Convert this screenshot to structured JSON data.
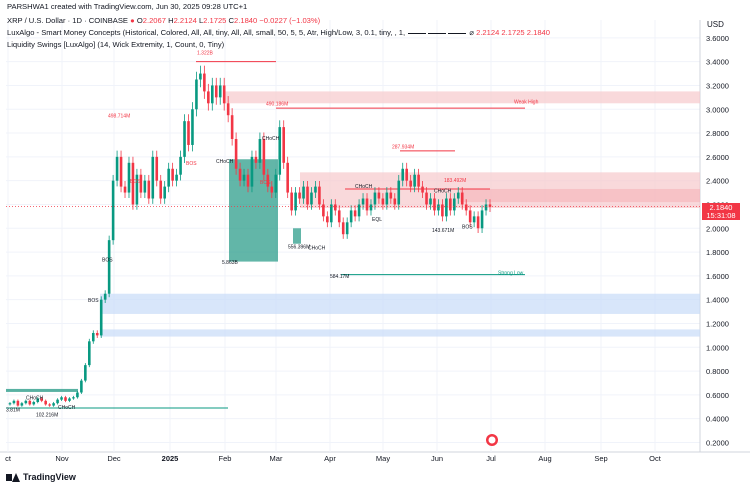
{
  "header": {
    "creator_line": "PARSHWA1 created with TradingView.com, Jun 30, 2025 09:28 UTC+1",
    "symbol": "XRP / U.S. Dollar · 1D · COINBASE",
    "o_label": "O",
    "o_value": "2.2067",
    "h_label": "H",
    "h_value": "2.2124",
    "l_label": "L",
    "l_value": "2.1725",
    "c_label": "C",
    "c_value": "2.1840",
    "change": "−0.0227 (−1.03%)",
    "indicator1": "LuxAlgo - Smart Money Concepts (Historical, Colored, All, All, tiny, All, All, small, 50, 5, 5, Atr, High/Low, 3, 0.1, tiny, , 1,",
    "indicator1_values": "2.2124  2.1725  2.1840",
    "indicator2": "Liquidity Swings [LuxAlgo] (14, Wick Extremity, 1, Count, 0, Tiny)"
  },
  "axis": {
    "currency": "USD",
    "current_price": "2.1840",
    "countdown": "15:31:08"
  },
  "footer": {
    "brand": "TradingView"
  },
  "colors": {
    "up": "#089981",
    "down": "#f23645",
    "zone_red": "#f7c9cc",
    "zone_blue": "#c8dcf8",
    "ob_green": "#2e9e8b",
    "grid": "#f0f3fa"
  },
  "chart_data": {
    "type": "candlestick",
    "ylim": [
      0.12,
      3.75
    ],
    "x_ticks": [
      "ct",
      "Nov",
      "Dec",
      "2025",
      "Feb",
      "Mar",
      "Apr",
      "May",
      "Jun",
      "Jul",
      "Aug",
      "Sep",
      "Oct"
    ],
    "y_ticks": [
      "3.6000",
      "3.4000",
      "3.2000",
      "3.0000",
      "2.8000",
      "2.6000",
      "2.4000",
      "2.2000",
      "2.0000",
      "1.8000",
      "1.6000",
      "1.4000",
      "1.2000",
      "1.0000",
      "0.8000",
      "0.6000",
      "0.4000",
      "0.2000"
    ],
    "y_tick_values": [
      3.6,
      3.4,
      3.2,
      3.0,
      2.8,
      2.6,
      2.4,
      2.2,
      2.0,
      1.8,
      1.6,
      1.4,
      1.2,
      1.0,
      0.8,
      0.6,
      0.4,
      0.2
    ],
    "price_path": [
      [
        0,
        0.52
      ],
      [
        4,
        0.53
      ],
      [
        8,
        0.55
      ],
      [
        12,
        0.51
      ],
      [
        16,
        0.53
      ],
      [
        20,
        0.55
      ],
      [
        24,
        0.52
      ],
      [
        28,
        0.54
      ],
      [
        32,
        0.57
      ],
      [
        36,
        0.55
      ],
      [
        40,
        0.52
      ],
      [
        44,
        0.51
      ],
      [
        48,
        0.53
      ],
      [
        52,
        0.56
      ],
      [
        56,
        0.58
      ],
      [
        60,
        0.55
      ],
      [
        64,
        0.57
      ],
      [
        68,
        0.58
      ],
      [
        72,
        0.62
      ],
      [
        76,
        0.72
      ],
      [
        80,
        0.85
      ],
      [
        84,
        1.05
      ],
      [
        88,
        1.12
      ],
      [
        92,
        1.1
      ],
      [
        96,
        1.4
      ],
      [
        100,
        1.45
      ],
      [
        104,
        1.9
      ],
      [
        108,
        2.4
      ],
      [
        112,
        2.6
      ],
      [
        116,
        2.35
      ],
      [
        120,
        2.3
      ],
      [
        124,
        2.55
      ],
      [
        128,
        2.2
      ],
      [
        132,
        2.45
      ],
      [
        136,
        2.3
      ],
      [
        140,
        2.4
      ],
      [
        144,
        2.25
      ],
      [
        148,
        2.6
      ],
      [
        152,
        2.4
      ],
      [
        156,
        2.25
      ],
      [
        160,
        2.35
      ],
      [
        164,
        2.5
      ],
      [
        168,
        2.4
      ],
      [
        172,
        2.45
      ],
      [
        176,
        2.6
      ],
      [
        180,
        2.9
      ],
      [
        184,
        2.7
      ],
      [
        188,
        3.0
      ],
      [
        192,
        3.25
      ],
      [
        196,
        3.3
      ],
      [
        200,
        3.15
      ],
      [
        204,
        3.05
      ],
      [
        208,
        3.2
      ],
      [
        212,
        3.1
      ],
      [
        216,
        3.2
      ],
      [
        220,
        3.05
      ],
      [
        224,
        2.95
      ],
      [
        228,
        2.75
      ],
      [
        232,
        2.5
      ],
      [
        236,
        2.4
      ],
      [
        240,
        2.45
      ],
      [
        244,
        2.35
      ],
      [
        248,
        2.6
      ],
      [
        252,
        2.55
      ],
      [
        256,
        2.75
      ],
      [
        260,
        2.45
      ],
      [
        264,
        2.35
      ],
      [
        268,
        2.3
      ],
      [
        272,
        2.45
      ],
      [
        276,
        2.85
      ],
      [
        280,
        2.55
      ],
      [
        284,
        2.3
      ],
      [
        288,
        2.15
      ],
      [
        292,
        2.3
      ],
      [
        296,
        2.25
      ],
      [
        300,
        2.35
      ],
      [
        304,
        2.2
      ],
      [
        308,
        2.3
      ],
      [
        312,
        2.35
      ],
      [
        316,
        2.2
      ],
      [
        320,
        2.1
      ],
      [
        324,
        2.05
      ],
      [
        328,
        2.2
      ],
      [
        332,
        2.15
      ],
      [
        336,
        2.05
      ],
      [
        340,
        1.95
      ],
      [
        344,
        2.05
      ],
      [
        348,
        2.15
      ],
      [
        352,
        2.1
      ],
      [
        356,
        2.2
      ],
      [
        360,
        2.25
      ],
      [
        364,
        2.15
      ],
      [
        368,
        2.2
      ],
      [
        372,
        2.3
      ],
      [
        376,
        2.25
      ],
      [
        380,
        2.2
      ],
      [
        384,
        2.3
      ],
      [
        388,
        2.25
      ],
      [
        392,
        2.2
      ],
      [
        396,
        2.4
      ],
      [
        400,
        2.5
      ],
      [
        404,
        2.4
      ],
      [
        408,
        2.35
      ],
      [
        412,
        2.45
      ],
      [
        416,
        2.35
      ],
      [
        420,
        2.3
      ],
      [
        424,
        2.2
      ],
      [
        428,
        2.25
      ],
      [
        432,
        2.15
      ],
      [
        436,
        2.2
      ],
      [
        440,
        2.1
      ],
      [
        444,
        2.25
      ],
      [
        448,
        2.15
      ],
      [
        452,
        2.25
      ],
      [
        456,
        2.3
      ],
      [
        460,
        2.2
      ],
      [
        464,
        2.15
      ],
      [
        468,
        2.05
      ],
      [
        472,
        2.1
      ],
      [
        476,
        2.0
      ],
      [
        480,
        2.15
      ],
      [
        484,
        2.2
      ],
      [
        488,
        2.18
      ]
    ],
    "zones": [
      {
        "label": "Weak High",
        "kind": "premium",
        "y_top": 3.15,
        "y_bottom": 3.05
      },
      {
        "label": "",
        "kind": "premium",
        "y_top": 2.47,
        "y_bottom": 2.17
      },
      {
        "label": "",
        "kind": "discount",
        "y_top": 1.45,
        "y_bottom": 1.28
      },
      {
        "label": "",
        "kind": "discount",
        "y_top": 1.15,
        "y_bottom": 1.09
      }
    ],
    "annotations": [
      {
        "text": "1.322B",
        "price": 3.46
      },
      {
        "text": "498.714M",
        "price": 2.93
      },
      {
        "text": "490.186M",
        "price": 3.03
      },
      {
        "text": "287.934M",
        "price": 2.67
      },
      {
        "text": "183.492M",
        "price": 2.39
      },
      {
        "text": "Weak High",
        "price": 3.05
      },
      {
        "text": "Strong Low",
        "price": 1.61
      },
      {
        "text": "584.17M",
        "price": 1.58
      },
      {
        "text": "5.863B",
        "price": 1.7
      },
      {
        "text": "556.396M",
        "price": 1.83
      },
      {
        "text": "143.671M",
        "price": 1.97
      },
      {
        "text": "102.216M",
        "price": 0.42
      },
      {
        "text": "3.81M",
        "price": 0.46
      },
      {
        "text": "BOS",
        "price": 2.53
      },
      {
        "text": "BOS",
        "price": 2.38
      },
      {
        "text": "BOS",
        "price": 2.37
      },
      {
        "text": "BOS",
        "price": 1.72
      },
      {
        "text": "BOS",
        "price": 1.38
      },
      {
        "text": "CHoCH",
        "price": 2.74
      },
      {
        "text": "CHoCH",
        "price": 2.55
      },
      {
        "text": "CHoCH",
        "price": 2.34
      },
      {
        "text": "CHoCH",
        "price": 2.3
      },
      {
        "text": "CHoCH",
        "price": 1.82
      },
      {
        "text": "CHoCH",
        "price": 0.56
      },
      {
        "text": "CHoCH",
        "price": 0.48
      },
      {
        "text": "EQL",
        "price": 2.06
      },
      {
        "text": "BOS",
        "price": 2.0
      }
    ]
  }
}
